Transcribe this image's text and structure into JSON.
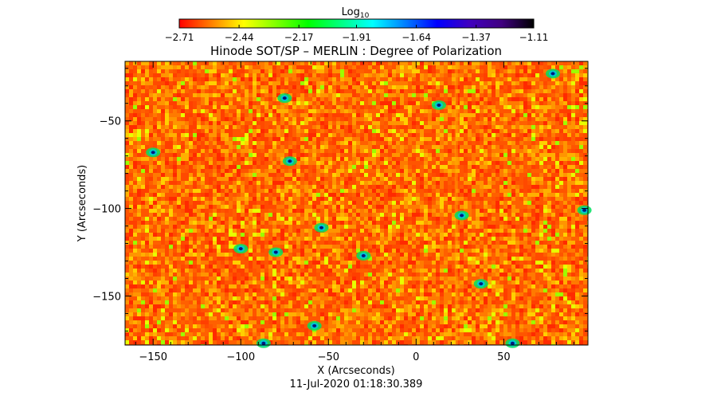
{
  "chart_data": {
    "type": "heatmap",
    "title": "Hinode SOT/SP – MERLIN : Degree of Polarization",
    "xlabel": "X (Arcseconds)",
    "ylabel": "Y (Arcseconds)",
    "date_label": "11-Jul-2020 01:18:30.389",
    "xlim": [
      -166,
      98
    ],
    "ylim": [
      -178,
      -16
    ],
    "x_ticks": [
      -150,
      -100,
      -50,
      0,
      50
    ],
    "x_tick_labels": [
      "−150",
      "−100",
      "−50",
      "0",
      "50"
    ],
    "y_ticks": [
      -50,
      -100,
      -150
    ],
    "y_tick_labels": [
      "−50",
      "−100",
      "−150"
    ],
    "colorbar": {
      "title_base": "Log",
      "title_sub": "10",
      "range": [
        -2.71,
        -1.11
      ],
      "ticks": [
        -2.71,
        -2.44,
        -2.17,
        -1.91,
        -1.64,
        -1.37,
        -1.11
      ],
      "tick_labels": [
        "−2.71",
        "−2.44",
        "−2.17",
        "−1.91",
        "−1.64",
        "−1.37",
        "−1.11"
      ],
      "colormap": [
        "#ff0000",
        "#ff8000",
        "#ffff00",
        "#80ff00",
        "#00ff00",
        "#00ff80",
        "#00ffff",
        "#0080ff",
        "#0000ff",
        "#4000c0",
        "#400080",
        "#000000"
      ]
    },
    "features": [
      {
        "x": -75,
        "y": -37
      },
      {
        "x": 13,
        "y": -41
      },
      {
        "x": 78,
        "y": -23
      },
      {
        "x": -72,
        "y": -73
      },
      {
        "x": 26,
        "y": -104
      },
      {
        "x": -100,
        "y": -123
      },
      {
        "x": -80,
        "y": -125
      },
      {
        "x": -87,
        "y": -177
      },
      {
        "x": -58,
        "y": -167
      },
      {
        "x": 55,
        "y": -177
      },
      {
        "x": 96,
        "y": -101
      },
      {
        "x": -150,
        "y": -68
      },
      {
        "x": 37,
        "y": -143
      },
      {
        "x": -30,
        "y": -127
      },
      {
        "x": -54,
        "y": -111
      }
    ],
    "grid": false
  }
}
